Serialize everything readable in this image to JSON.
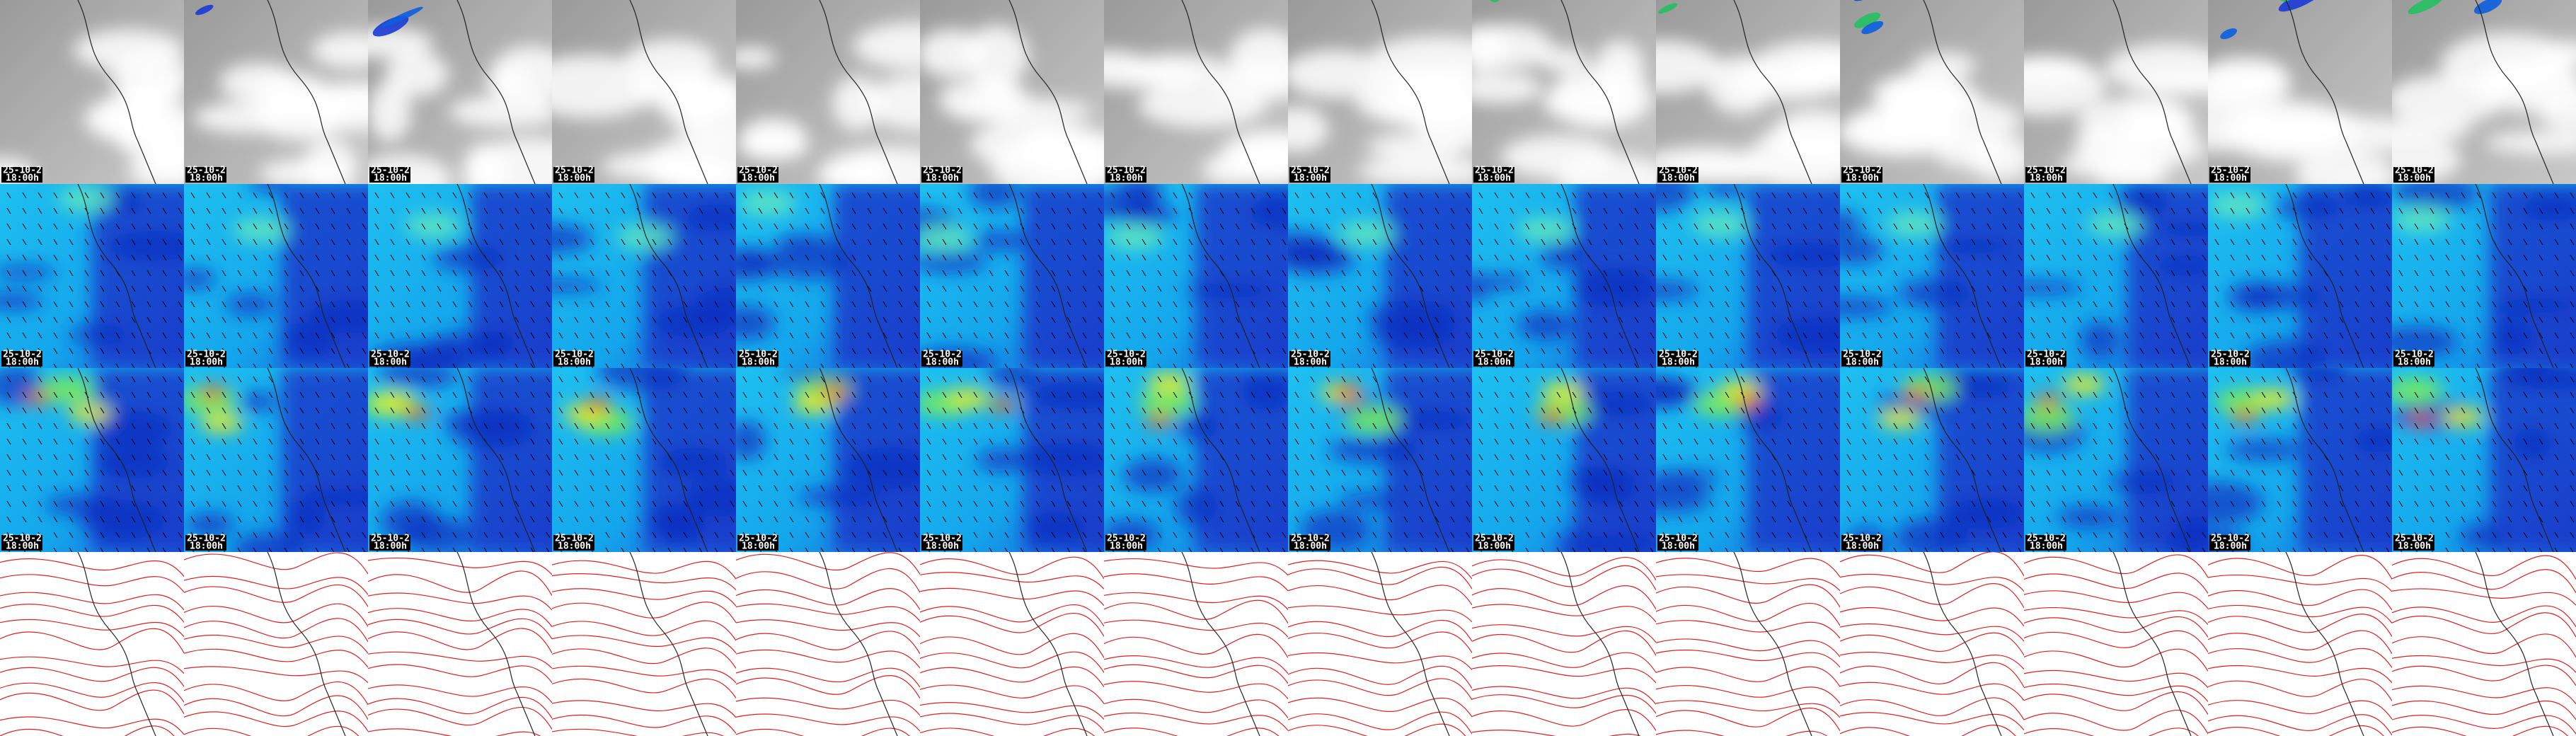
{
  "rows": [
    {
      "panels": [
        {
          "date": "25-10-2",
          "time": "18:00h"
        },
        {
          "date": "25-10-2",
          "time": "18:00h"
        },
        {
          "date": "25-10-2",
          "time": "18:00h"
        },
        {
          "date": "25-10-2",
          "time": "18:00h"
        },
        {
          "date": "25-10-2",
          "time": "18:00h"
        },
        {
          "date": "25-10-2",
          "time": "18:00h"
        },
        {
          "date": "25-10-2",
          "time": "18:00h"
        },
        {
          "date": "25-10-2",
          "time": "18:00h"
        },
        {
          "date": "25-10-2",
          "time": "18:00h"
        },
        {
          "date": "25-10-2",
          "time": "18:00h"
        },
        {
          "date": "25-10-2",
          "time": "18:00h"
        },
        {
          "date": "25-10-2",
          "time": "18:00h"
        },
        {
          "date": "25-10-2",
          "time": "18:00h"
        },
        {
          "date": "25-10-2",
          "time": "18:00h"
        }
      ]
    },
    {
      "panels": [
        {
          "date": "25-10-2",
          "time": "18:00h"
        },
        {
          "date": "25-10-2",
          "time": "18:00h"
        },
        {
          "date": "25-10-2",
          "time": "18:00h"
        },
        {
          "date": "25-10-2",
          "time": "18:00h"
        },
        {
          "date": "25-10-2",
          "time": "18:00h"
        },
        {
          "date": "25-10-2",
          "time": "18:00h"
        },
        {
          "date": "25-10-2",
          "time": "18:00h"
        },
        {
          "date": "25-10-2",
          "time": "18:00h"
        },
        {
          "date": "25-10-2",
          "time": "18:00h"
        },
        {
          "date": "25-10-2",
          "time": "18:00h"
        },
        {
          "date": "25-10-2",
          "time": "18:00h"
        },
        {
          "date": "25-10-2",
          "time": "18:00h"
        },
        {
          "date": "25-10-2",
          "time": "18:00h"
        },
        {
          "date": "25-10-2",
          "time": "18:00h"
        }
      ]
    },
    {
      "panels": [
        {
          "date": "25-10-2",
          "time": "18:00h"
        },
        {
          "date": "25-10-2",
          "time": "18:00h"
        },
        {
          "date": "25-10-2",
          "time": "18:00h"
        },
        {
          "date": "25-10-2",
          "time": "18:00h"
        },
        {
          "date": "25-10-2",
          "time": "18:00h"
        },
        {
          "date": "25-10-2",
          "time": "18:00h"
        },
        {
          "date": "25-10-2",
          "time": "18:00h"
        },
        {
          "date": "25-10-2",
          "time": "18:00h"
        },
        {
          "date": "25-10-2",
          "time": "18:00h"
        },
        {
          "date": "25-10-2",
          "time": "18:00h"
        },
        {
          "date": "25-10-2",
          "time": "18:00h"
        },
        {
          "date": "25-10-2",
          "time": "18:00h"
        },
        {
          "date": "25-10-2",
          "time": "18:00h"
        },
        {
          "date": "25-10-2",
          "time": "18:00h"
        }
      ]
    }
  ]
}
